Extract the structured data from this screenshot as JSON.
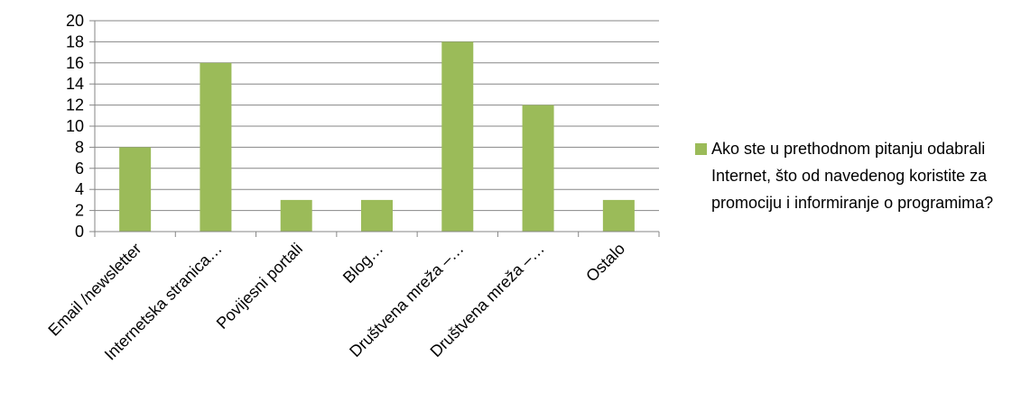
{
  "chart_data": {
    "type": "bar",
    "categories": [
      "Email /newsletter",
      "Internetska stranica…",
      "Povijesni portali",
      "Blog…",
      "Društvena mreža –…",
      "Društvena mreža –…",
      "Ostalo"
    ],
    "series": [
      {
        "name": "Ako ste u prethodnom pitanju odabrali Internet, što od navedenog koristite za promociju i informiranje o programima?",
        "values": [
          8,
          16,
          3,
          3,
          18,
          12,
          3
        ],
        "color": "#9bbb59"
      }
    ],
    "ylim": [
      0,
      20
    ],
    "yticks": [
      "0",
      "2",
      "4",
      "6",
      "8",
      "10",
      "12",
      "14",
      "16",
      "18",
      "20"
    ],
    "grid": true,
    "legend_position": "right",
    "title": "",
    "xlabel": "",
    "ylabel": ""
  }
}
